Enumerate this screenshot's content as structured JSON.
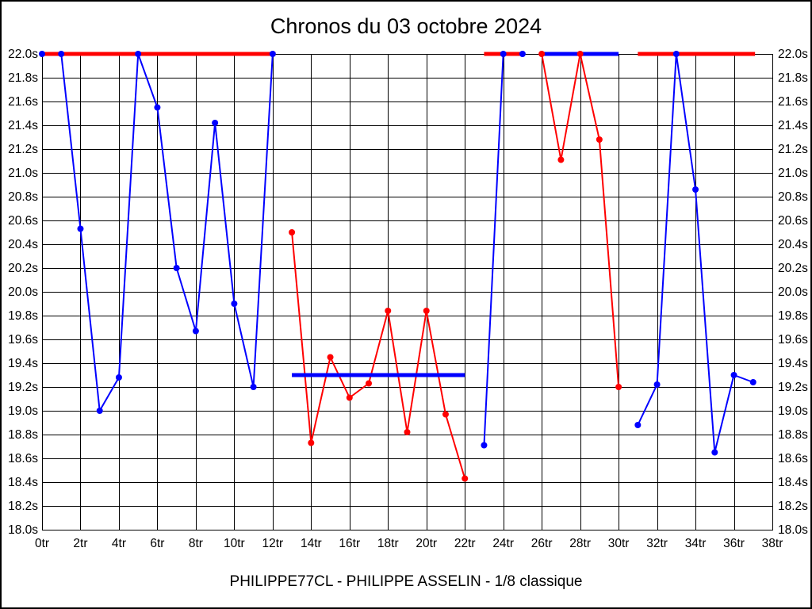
{
  "page": {
    "title": "Chronos du 03 octobre 2024",
    "footer": "PHILIPPE77CL - PHILIPPE ASSELIN - 1/8 classique"
  },
  "chart_data": {
    "type": "line",
    "title": "Chronos du 03 octobre 2024",
    "subtitle": "PHILIPPE77CL - PHILIPPE ASSELIN - 1/8 classique",
    "x_unit": "tr",
    "y_unit": "s",
    "xlim": [
      0,
      38
    ],
    "ylim": [
      18.0,
      22.0
    ],
    "x_tick_step": 2,
    "y_tick_step": 0.2,
    "grid": true,
    "legend": "none",
    "marker": "circle",
    "series": [
      {
        "name": "blue-laps",
        "color": "#0000ff",
        "segments": [
          {
            "x": [
              0,
              1,
              2,
              3,
              4,
              5,
              6,
              7,
              8,
              9,
              10,
              11,
              12
            ],
            "y": [
              22.0,
              22.0,
              20.53,
              19.0,
              19.28,
              22.0,
              21.55,
              20.2,
              19.67,
              21.42,
              19.9,
              19.2,
              22.0
            ]
          },
          {
            "x": [
              23,
              24,
              25
            ],
            "y": [
              18.71,
              22.0,
              22.0
            ]
          },
          {
            "x": [
              31,
              32,
              33,
              34,
              35,
              36,
              37
            ],
            "y": [
              18.88,
              19.22,
              22.0,
              20.86,
              18.65,
              19.3,
              19.24
            ]
          }
        ]
      },
      {
        "name": "red-laps",
        "color": "#ff0000",
        "segments": [
          {
            "x": [
              13,
              14,
              15,
              16,
              17,
              18,
              19,
              20,
              21,
              22
            ],
            "y": [
              20.5,
              18.73,
              19.45,
              19.11,
              19.23,
              19.84,
              18.82,
              19.84,
              18.97,
              18.43
            ]
          },
          {
            "x": [
              26,
              27,
              28,
              29,
              30
            ],
            "y": [
              22.0,
              21.11,
              22.0,
              21.28,
              19.2
            ]
          }
        ]
      }
    ],
    "reference_lines": [
      {
        "name": "red-ref-heat1",
        "color": "#ff0000",
        "y": 22.0,
        "x1": 0,
        "x2": 12.15
      },
      {
        "name": "blue-avg-heat2",
        "color": "#0000ff",
        "y": 19.3,
        "x1": 13,
        "x2": 22
      },
      {
        "name": "red-ref-heat3",
        "color": "#ff0000",
        "y": 22.0,
        "x1": 23,
        "x2": 25
      },
      {
        "name": "blue-ref-heat4",
        "color": "#0000ff",
        "y": 22.0,
        "x1": 26,
        "x2": 30
      },
      {
        "name": "red-ref-heat5",
        "color": "#ff0000",
        "y": 22.0,
        "x1": 31,
        "x2": 37.1
      }
    ]
  }
}
